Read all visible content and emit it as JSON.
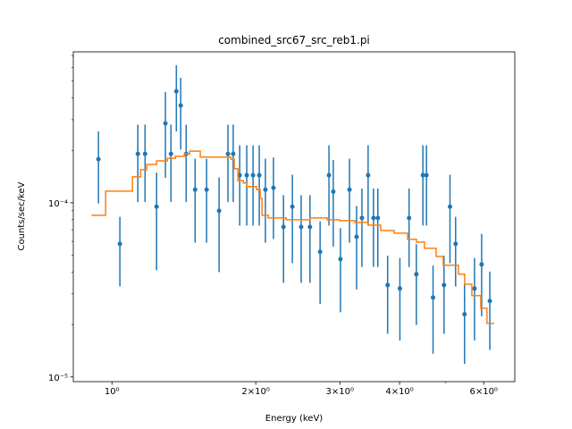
{
  "chart_data": {
    "type": "errorbar",
    "title": "combined_src67_src_reb1.pi",
    "xlabel": "Energy (keV)",
    "ylabel": "Counts/sec/keV",
    "xscale": "log",
    "yscale": "log",
    "xlim": [
      0.83,
      6.97
    ],
    "ylim": [
      9.4e-06,
      0.000736
    ],
    "xticks": [
      {
        "value": 1,
        "label": "10⁰"
      },
      {
        "value": 2,
        "label": "2×10⁰"
      },
      {
        "value": 3,
        "label": "3×10⁰"
      },
      {
        "value": 4,
        "label": "4×10⁰"
      },
      {
        "value": 6,
        "label": "6×10⁰"
      }
    ],
    "xminorticks": [
      5
    ],
    "yticks": [
      {
        "value": 1e-05,
        "label": "10⁻⁵"
      },
      {
        "value": 0.0001,
        "label": "10⁻⁴"
      }
    ],
    "yminorticks": [
      2e-05,
      3e-05,
      4e-05,
      5e-05,
      6e-05,
      7e-05,
      8e-05,
      9e-05,
      0.0002,
      0.0003,
      0.0004,
      0.0005,
      0.0006,
      0.0007
    ],
    "series": [
      {
        "kind": "points",
        "color": "#1f77b4",
        "x": [
          0.937,
          1.039,
          1.133,
          1.173,
          1.24,
          1.294,
          1.329,
          1.364,
          1.393,
          1.43,
          1.493,
          1.578,
          1.676,
          1.749,
          1.794,
          1.851,
          1.915,
          1.974,
          2.034,
          2.095,
          2.178,
          2.286,
          2.386,
          2.489,
          2.597,
          2.727,
          2.846,
          2.906,
          3.008,
          3.142,
          3.251,
          3.336,
          3.437,
          3.527,
          3.602,
          3.776,
          4.006,
          4.187,
          4.337,
          4.476,
          4.554,
          4.7,
          4.955,
          5.1,
          5.24,
          5.47,
          5.74,
          5.94,
          6.18
        ],
        "values": [
          0.000178,
          5.81e-05,
          0.000191,
          0.000191,
          9.5e-05,
          0.000286,
          0.000191,
          0.000437,
          0.000362,
          0.000191,
          0.000119,
          0.000119,
          9e-05,
          0.000191,
          0.000191,
          0.000144,
          0.000144,
          0.000144,
          0.000144,
          0.000119,
          0.000122,
          7.27e-05,
          9.5e-05,
          7.27e-05,
          7.27e-05,
          5.23e-05,
          0.000144,
          0.000116,
          4.75e-05,
          0.000119,
          6.38e-05,
          8.18e-05,
          0.000144,
          8.18e-05,
          8.18e-05,
          3.37e-05,
          3.22e-05,
          8.18e-05,
          3.89e-05,
          0.000144,
          0.000144,
          2.86e-05,
          3.37e-05,
          9.5e-05,
          5.81e-05,
          2.29e-05,
          3.22e-05,
          4.43e-05,
          2.73e-05
        ],
        "errors": [
          7.9e-05,
          2.5e-05,
          9e-05,
          9e-05,
          5.4e-05,
          0.000147,
          9e-05,
          0.00018,
          0.00016,
          9e-05,
          6e-05,
          6e-05,
          5e-05,
          9e-05,
          9e-05,
          7e-05,
          7e-05,
          7e-05,
          7e-05,
          6e-05,
          6e-05,
          3.8e-05,
          5e-05,
          3.8e-05,
          3.8e-05,
          2.6e-05,
          7e-05,
          6e-05,
          2.4e-05,
          6e-05,
          3.2e-05,
          3.9e-05,
          7e-05,
          3.9e-05,
          3.9e-05,
          1.6e-05,
          1.6e-05,
          3.9e-05,
          1.9e-05,
          7e-05,
          7e-05,
          1.5e-05,
          1.6e-05,
          5e-05,
          2.5e-05,
          1.1e-05,
          1.6e-05,
          2.2e-05,
          1.3e-05
        ]
      },
      {
        "kind": "step",
        "color": "#ff7f0e",
        "x": [
          0.906,
          0.97,
          1.104,
          1.148,
          1.183,
          1.24,
          1.306,
          1.357,
          1.417,
          1.454,
          1.531,
          1.773,
          1.803,
          1.835,
          1.883,
          1.915,
          2.008,
          2.043,
          2.061,
          2.124,
          2.315,
          2.6,
          2.822,
          2.997,
          3.225,
          3.44,
          3.652,
          3.896,
          4.156,
          4.339,
          4.51,
          4.77,
          4.937,
          5.312,
          5.474,
          5.666,
          5.916,
          6.095,
          6.31
        ],
        "values": [
          8.48e-05,
          0.0001166,
          0.000141,
          0.000155,
          0.000166,
          0.000174,
          0.00018,
          0.000185,
          0.000191,
          0.000198,
          0.000183,
          0.000178,
          0.000157,
          0.000134,
          0.00013,
          0.000124,
          0.000119,
          0.000106,
          8.48e-05,
          8.18e-05,
          7.99e-05,
          8.18e-05,
          7.99e-05,
          7.9e-05,
          7.71e-05,
          7.45e-05,
          6.93e-05,
          6.69e-05,
          6.17e-05,
          5.95e-05,
          5.48e-05,
          4.92e-05,
          4.38e-05,
          3.89e-05,
          3.41e-05,
          2.93e-05,
          2.48e-05,
          2.03e-05,
          2.03e-05
        ]
      }
    ]
  }
}
